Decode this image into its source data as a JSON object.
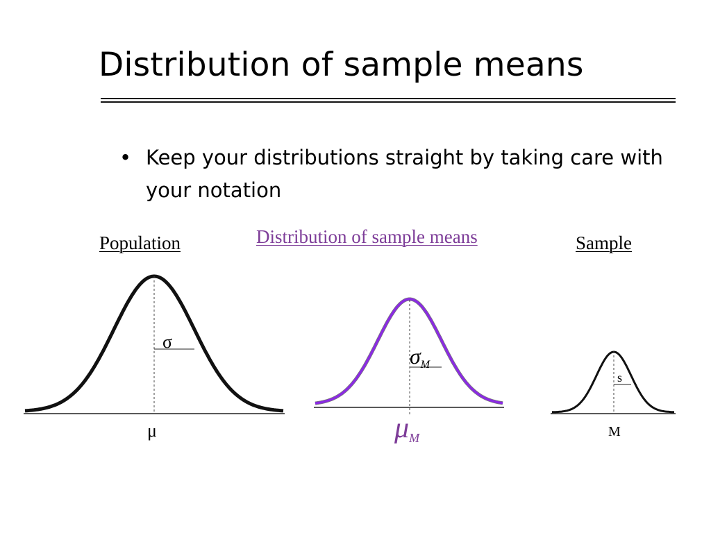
{
  "slide": {
    "title": "Distribution of sample means",
    "bullet": "Keep your distributions straight by taking care with your notation"
  },
  "panels": {
    "population": {
      "label": "Population",
      "sd_symbol": "σ",
      "mean_symbol": "μ"
    },
    "sampling_distribution": {
      "label": "Distribution of sample means",
      "sd_symbol": "σ",
      "sd_subscript": "M",
      "mean_symbol": "μ",
      "mean_subscript": "M"
    },
    "sample": {
      "label": "Sample",
      "sd_symbol": "s",
      "mean_symbol": "M"
    }
  },
  "colors": {
    "accent": "#7d3c98",
    "curve": "#111111",
    "purple_curve": "#8a2be2"
  }
}
